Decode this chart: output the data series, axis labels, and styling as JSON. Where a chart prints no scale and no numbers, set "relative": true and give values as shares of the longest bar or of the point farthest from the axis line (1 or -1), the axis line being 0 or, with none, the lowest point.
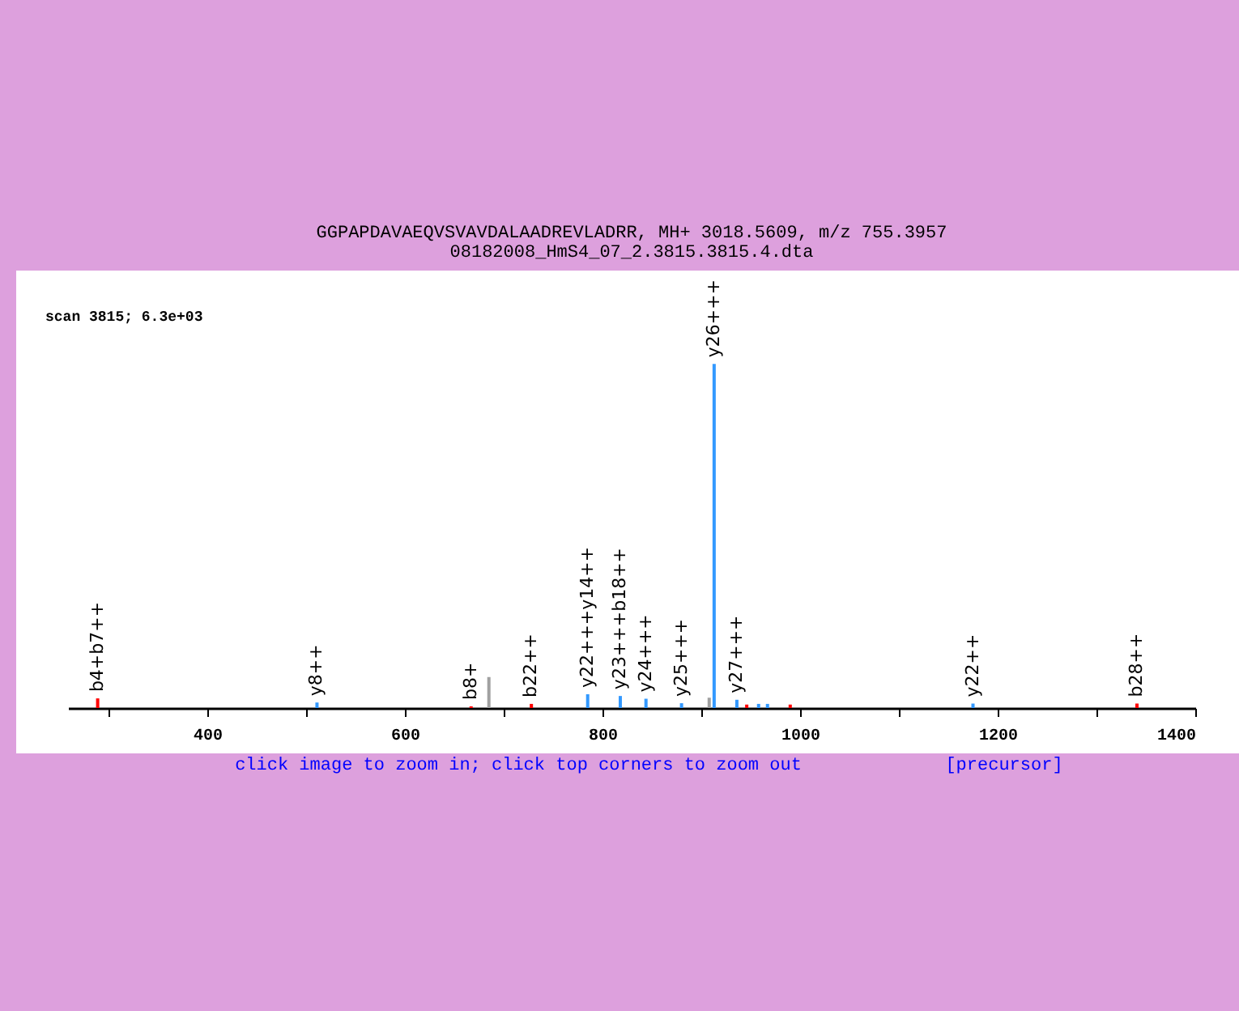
{
  "chart_data": {
    "type": "bar",
    "title": "GGPAPDAVAEQVSVAVDALAADREVLADRR, MH+ 3018.5609, m/z 755.3957",
    "subtitle": "08182008_HmS4_07_2.3815.3815.4.dta",
    "relative": true,
    "x": [
      289,
      511,
      667,
      685,
      728,
      785,
      818,
      844,
      880,
      908,
      913,
      936,
      946,
      958,
      967,
      990,
      1175,
      1341
    ],
    "values": [
      0.028,
      0.016,
      0.005,
      0.09,
      0.012,
      0.04,
      0.035,
      0.027,
      0.014,
      0.03,
      1,
      0.024,
      0.01,
      0.012,
      0.012,
      0.01,
      0.013,
      0.013
    ],
    "colors": [
      "#ff0000",
      "#3399ff",
      "#ff0000",
      "#a0a0a0",
      "#ff0000",
      "#3399ff",
      "#3399ff",
      "#3399ff",
      "#3399ff",
      "#a0a0a0",
      "#3399ff",
      "#3399ff",
      "#ff0000",
      "#3399ff",
      "#3399ff",
      "#ff0000",
      "#3399ff",
      "#ff0000"
    ],
    "xlim": [
      259,
      1400
    ],
    "xticks": [
      {
        "value": 300,
        "label": null
      },
      400,
      {
        "value": 500,
        "label": null
      },
      600,
      {
        "value": 700,
        "label": null
      },
      800,
      {
        "value": 900,
        "label": null
      },
      1000,
      {
        "value": 1100,
        "label": null
      },
      1200,
      {
        "value": 1300,
        "label": null
      },
      1400
    ],
    "grid": false,
    "annotations": [
      "scan 3815; 6.3e+03",
      "click image to zoom in; click top corners to zoom out",
      "[precursor]",
      {
        "text": "b4+b7++",
        "x": 289,
        "y": 0.028
      },
      {
        "text": "y8++",
        "x": 511,
        "y": 0.016
      },
      {
        "text": "b8+",
        "x": 667,
        "y": 0.005
      },
      {
        "text": "b22++",
        "x": 728,
        "y": 0.012
      },
      {
        "text": "y22+++y14++",
        "x": 785,
        "y": 0.04
      },
      {
        "text": "y23+++b18++",
        "x": 818,
        "y": 0.035
      },
      {
        "text": "y24+++",
        "x": 844,
        "y": 0.027
      },
      {
        "text": "y25+++",
        "x": 880,
        "y": 0.014
      },
      {
        "text": "y26+++",
        "x": 913,
        "y": 1
      },
      {
        "text": "y27+++",
        "x": 936,
        "y": 0.024
      },
      {
        "text": "y22++",
        "x": 1175,
        "y": 0.013
      },
      {
        "text": "b28++",
        "x": 1341,
        "y": 0.013
      }
    ]
  }
}
